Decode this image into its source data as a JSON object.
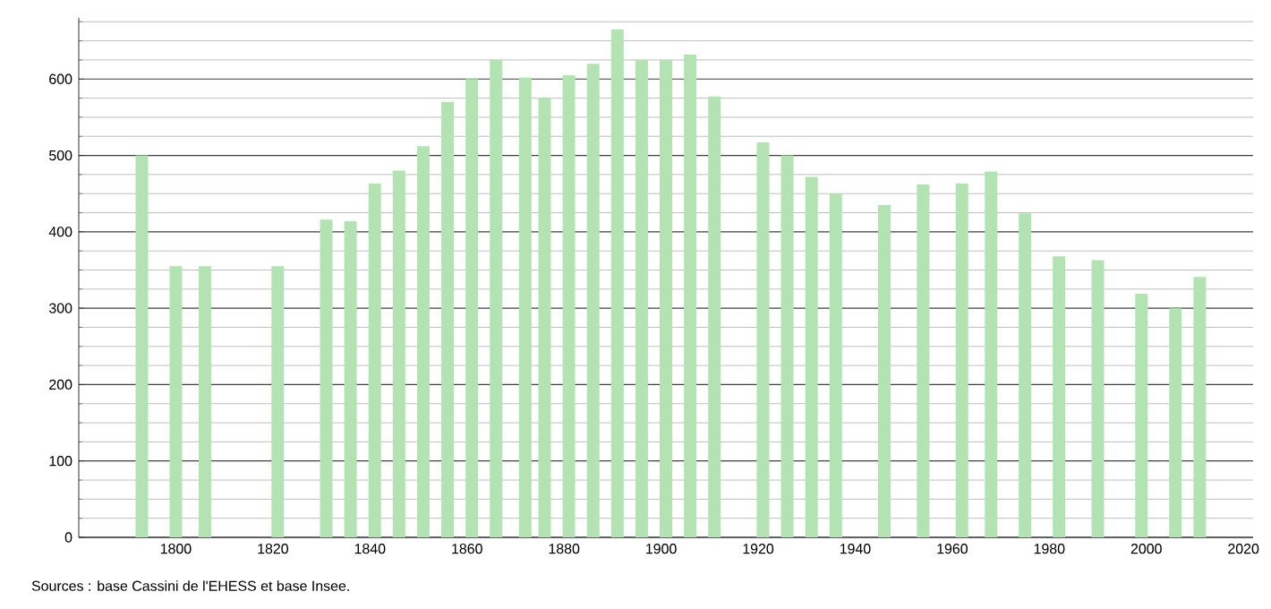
{
  "chart_data": {
    "type": "bar",
    "x": [
      1793,
      1800,
      1806,
      1821,
      1831,
      1836,
      1841,
      1846,
      1851,
      1856,
      1861,
      1866,
      1872,
      1876,
      1881,
      1886,
      1891,
      1896,
      1901,
      1906,
      1911,
      1921,
      1926,
      1931,
      1936,
      1946,
      1954,
      1962,
      1968,
      1975,
      1982,
      1990,
      1999,
      2006,
      2011
    ],
    "values": [
      500,
      355,
      355,
      355,
      416,
      414,
      463,
      480,
      512,
      570,
      600,
      625,
      602,
      575,
      605,
      620,
      665,
      625,
      625,
      632,
      577,
      517,
      500,
      472,
      450,
      435,
      462,
      463,
      479,
      424,
      368,
      363,
      319,
      300,
      341
    ],
    "color": "#b3e3b3",
    "xlim": [
      1780,
      2022
    ],
    "ylim": [
      0,
      680
    ],
    "xticks": [
      1800,
      1820,
      1840,
      1860,
      1880,
      1900,
      1920,
      1940,
      1960,
      1980,
      2000,
      2020
    ],
    "yticks": [
      0,
      {
        "value": 25,
        "label": null
      },
      {
        "value": 50,
        "label": null
      },
      {
        "value": 75,
        "label": null
      },
      100,
      {
        "value": 125,
        "label": null
      },
      {
        "value": 150,
        "label": null
      },
      {
        "value": 175,
        "label": null
      },
      200,
      {
        "value": 225,
        "label": null
      },
      {
        "value": 250,
        "label": null
      },
      {
        "value": 275,
        "label": null
      },
      300,
      {
        "value": 325,
        "label": null
      },
      {
        "value": 350,
        "label": null
      },
      {
        "value": 375,
        "label": null
      },
      400,
      {
        "value": 425,
        "label": null
      },
      {
        "value": 450,
        "label": null
      },
      {
        "value": 475,
        "label": null
      },
      500,
      {
        "value": 525,
        "label": null
      },
      {
        "value": 550,
        "label": null
      },
      {
        "value": 575,
        "label": null
      },
      600,
      {
        "value": 625,
        "label": null
      },
      {
        "value": 650,
        "label": null
      },
      {
        "value": 675,
        "label": null
      }
    ],
    "grid": "y",
    "annotations": [
      "Sources : base Cassini de l'EHESS et base Insee."
    ]
  }
}
